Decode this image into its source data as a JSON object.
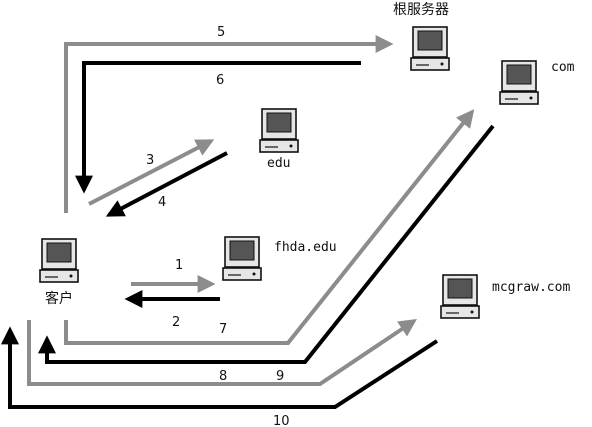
{
  "nodes": {
    "root": {
      "label": "根服务器"
    },
    "com": {
      "label": "com"
    },
    "edu": {
      "label": "edu"
    },
    "fhda": {
      "label": "fhda.edu"
    },
    "client": {
      "label": "客户"
    },
    "mcgraw": {
      "label": "mcgraw.com"
    }
  },
  "steps": {
    "s1": "1",
    "s2": "2",
    "s3": "3",
    "s4": "4",
    "s5": "5",
    "s6": "6",
    "s7": "7",
    "s8": "8",
    "s9": "9",
    "s10": "10"
  },
  "colors": {
    "request": "#8c8c8c",
    "response": "#000000",
    "monitor_frame": "#e6e6e6",
    "monitor_screen": "#555555"
  }
}
